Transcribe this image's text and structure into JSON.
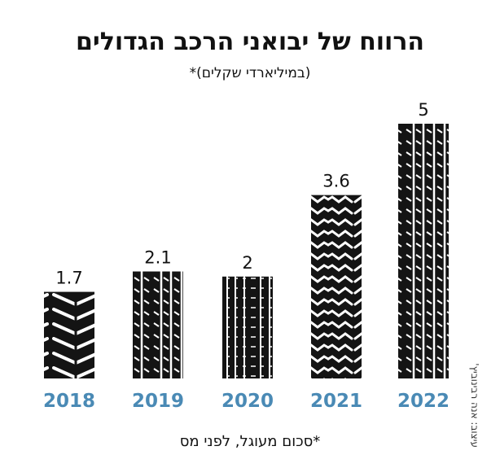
{
  "header": {
    "title": "הרווח של יבואני הרכב הגדולים",
    "subtitle": "(במיליארדי שקלים)*"
  },
  "footer": {
    "footnote": "*סכום מעוגל, לפני מס",
    "credit": "עיצוב: אנה רבינוביץ'"
  },
  "colors": {
    "tire": "#141414",
    "year_label": "#4a8ab5",
    "value_label": "#111111"
  },
  "chart_data": {
    "type": "bar",
    "categories": [
      "2018",
      "2019",
      "2020",
      "2021",
      "2022"
    ],
    "values": [
      1.7,
      2.1,
      2,
      3.6,
      5
    ],
    "value_labels": [
      "1.7",
      "2.1",
      "2",
      "3.6",
      "5"
    ],
    "tread_patterns": [
      "chevron",
      "ribs",
      "blocks",
      "wave",
      "ribs"
    ],
    "title": "הרווח של יבואני הרכב הגדולים",
    "subtitle": "(במיליארדי שקלים)*",
    "ylim": [
      0,
      5
    ],
    "grid": false,
    "legend": "none"
  }
}
